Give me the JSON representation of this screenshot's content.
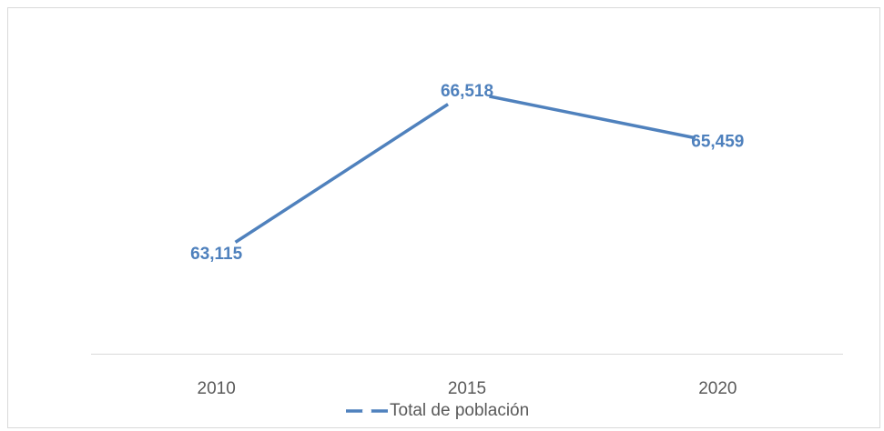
{
  "chart_data": {
    "type": "line",
    "categories": [
      "2010",
      "2015",
      "2020"
    ],
    "series": [
      {
        "name": "Total de población",
        "color": "#4f81bd",
        "values": [
          63115,
          66518,
          65459
        ],
        "value_labels": [
          "63,115",
          "66,518",
          "65,459"
        ]
      }
    ]
  }
}
